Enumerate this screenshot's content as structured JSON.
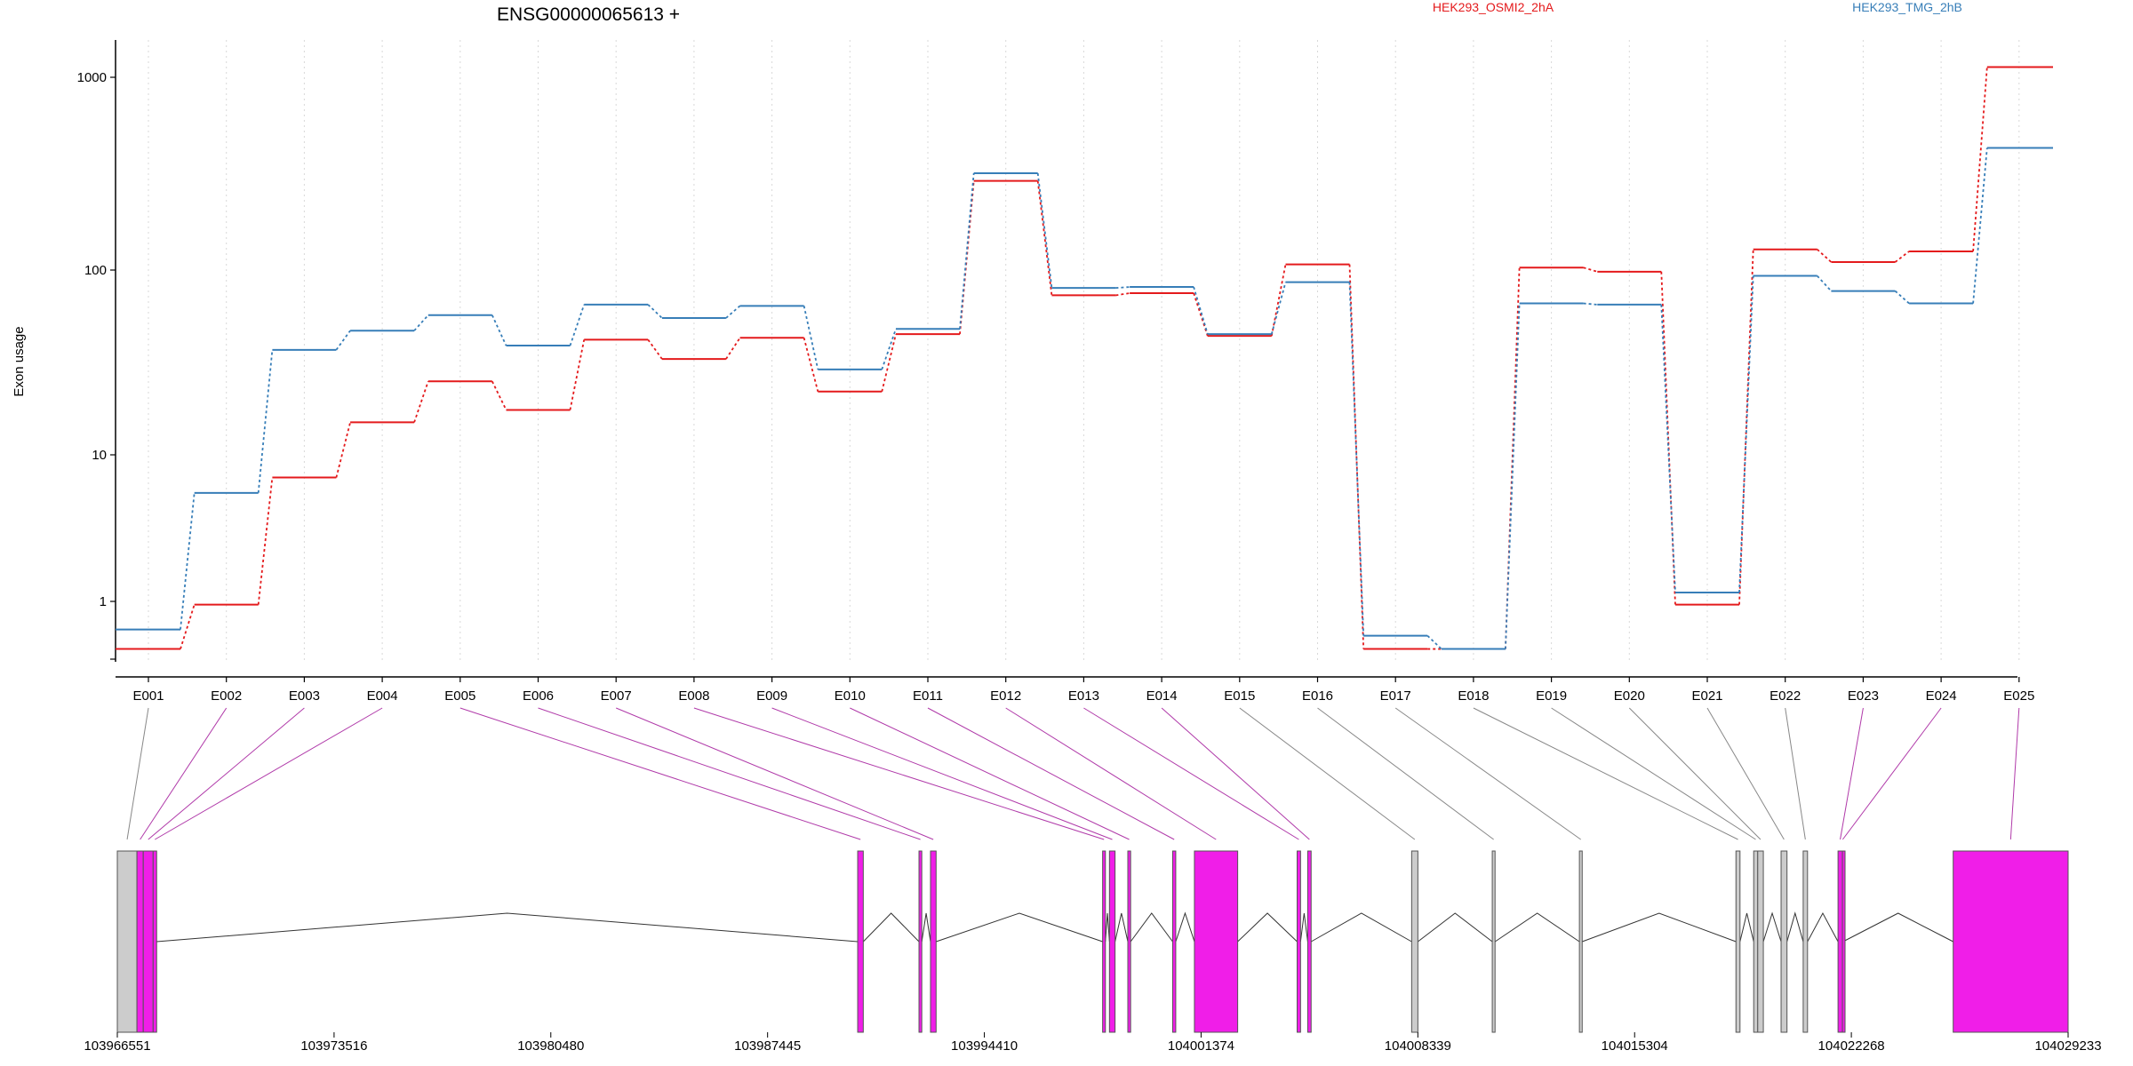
{
  "chart_data": {
    "type": "line",
    "title": "ENSG00000065613 +",
    "ylabel": "Exon usage",
    "xlabel": "",
    "y_scale": "log",
    "ylim": [
      0.4,
      1500
    ],
    "y_ticks": [
      1,
      10,
      100,
      1000
    ],
    "y_tick_labels": [
      "1",
      "10",
      "100",
      "1000"
    ],
    "grid": "vertical dotted lines at exon positions",
    "legend_position": "top",
    "categories": [
      "E001",
      "E002",
      "E003",
      "E004",
      "E005",
      "E006",
      "E007",
      "E008",
      "E009",
      "E010",
      "E011",
      "E012",
      "E013",
      "E014",
      "E015",
      "E016",
      "E017",
      "E018",
      "E019",
      "E020",
      "E021",
      "E022",
      "E023",
      "E024",
      "E025"
    ],
    "series": [
      {
        "name": "HEK293_OSMI2_2hA",
        "color": "#e41a1c",
        "values": [
          0.47,
          0.95,
          7,
          15,
          25,
          17.5,
          42,
          33,
          43,
          22,
          45,
          290,
          73,
          75,
          44,
          107,
          0.47,
          0.47,
          103,
          98,
          0.95,
          128,
          110,
          125,
          1150
        ]
      },
      {
        "name": "HEK293_TMG_2hB",
        "color": "#377eb8",
        "values": [
          0.64,
          5.5,
          37,
          47,
          57,
          39,
          65,
          55,
          64,
          29,
          48,
          318,
          80,
          81,
          45,
          86,
          0.58,
          0.47,
          66,
          65,
          1.15,
          93,
          77,
          66,
          430
        ]
      }
    ],
    "gene_model": {
      "coordinate_ticks": [
        "103966551",
        "103973516",
        "103980480",
        "103987445",
        "103994410",
        "104001374",
        "104008339",
        "104015304",
        "104022268",
        "104029233"
      ],
      "coord_range": [
        103966551,
        104029233
      ],
      "exons": [
        {
          "id": "E001",
          "start": 103966551,
          "end": 103967182,
          "significant": false
        },
        {
          "id": "E002",
          "start": 103967182,
          "end": 103967385,
          "significant": true
        },
        {
          "id": "E003",
          "start": 103967385,
          "end": 103967702,
          "significant": true
        },
        {
          "id": "E004",
          "start": 103967702,
          "end": 103967815,
          "significant": true
        },
        {
          "id": "E005",
          "start": 103990340,
          "end": 103990520,
          "significant": true
        },
        {
          "id": "E006",
          "start": 103992310,
          "end": 103992400,
          "significant": true
        },
        {
          "id": "E007",
          "start": 103992680,
          "end": 103992860,
          "significant": true
        },
        {
          "id": "E008",
          "start": 103998210,
          "end": 103998300,
          "significant": true
        },
        {
          "id": "E009",
          "start": 103998430,
          "end": 103998610,
          "significant": true
        },
        {
          "id": "E010",
          "start": 103999020,
          "end": 103999110,
          "significant": true
        },
        {
          "id": "E011",
          "start": 104000460,
          "end": 104000560,
          "significant": true
        },
        {
          "id": "E012",
          "start": 104001160,
          "end": 104002550,
          "significant": true
        },
        {
          "id": "E013",
          "start": 104004460,
          "end": 104004570,
          "significant": true
        },
        {
          "id": "E014",
          "start": 104004800,
          "end": 104004910,
          "significant": true
        },
        {
          "id": "E015",
          "start": 104008140,
          "end": 104008340,
          "significant": false
        },
        {
          "id": "E016",
          "start": 104010730,
          "end": 104010820,
          "significant": false
        },
        {
          "id": "E017",
          "start": 104013530,
          "end": 104013620,
          "significant": false
        },
        {
          "id": "E018",
          "start": 104018560,
          "end": 104018690,
          "significant": false
        },
        {
          "id": "E019",
          "start": 104019130,
          "end": 104019260,
          "significant": false
        },
        {
          "id": "E020",
          "start": 104019260,
          "end": 104019440,
          "significant": false
        },
        {
          "id": "E021",
          "start": 104020010,
          "end": 104020200,
          "significant": false
        },
        {
          "id": "E022",
          "start": 104020720,
          "end": 104020860,
          "significant": false
        },
        {
          "id": "E023",
          "start": 104021840,
          "end": 104021980,
          "significant": true
        },
        {
          "id": "E024",
          "start": 104021980,
          "end": 104022000,
          "significant": true
        },
        {
          "id": "E025",
          "start": 104025540,
          "end": 104029233,
          "significant": true
        }
      ],
      "colors": {
        "significant": "#f01ee8",
        "normal": "#cccccc",
        "outline": "#555555",
        "intron": "#333333"
      }
    }
  }
}
